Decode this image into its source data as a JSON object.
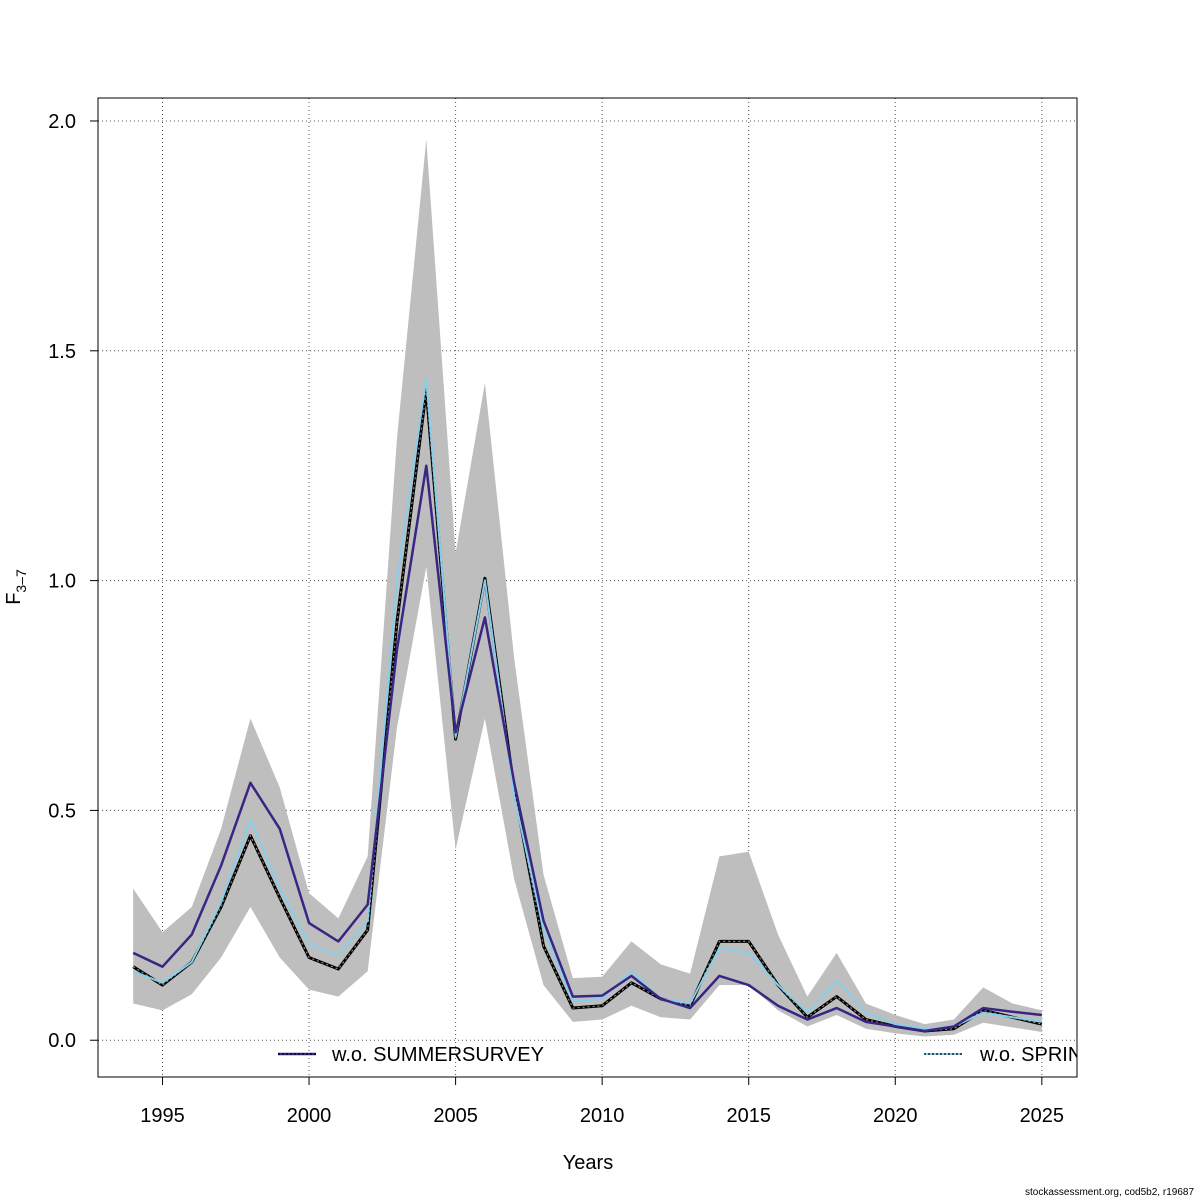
{
  "chart_data": {
    "type": "line",
    "xlabel": "Years",
    "ylabel_main": "F",
    "ylabel_sub": "3–7",
    "xlim": [
      1992.8,
      2026.2
    ],
    "ylim": [
      -0.08,
      2.05
    ],
    "x_ticks": [
      1995,
      2000,
      2005,
      2010,
      2015,
      2020,
      2025
    ],
    "y_ticks": [
      0.0,
      0.5,
      1.0,
      1.5,
      2.0
    ],
    "y_tick_labels": [
      "0.0",
      "0.5",
      "1.0",
      "1.5",
      "2.0"
    ],
    "grid": true,
    "legend_placement": "bottom",
    "x": [
      1994,
      1995,
      1996,
      1997,
      1998,
      1999,
      2000,
      2001,
      2002,
      2003,
      2004,
      2005,
      2006,
      2007,
      2008,
      2009,
      2010,
      2011,
      2012,
      2013,
      2014,
      2015,
      2016,
      2017,
      2018,
      2019,
      2020,
      2021,
      2022,
      2023,
      2024,
      2025
    ],
    "band": {
      "color": "#bebebe",
      "lower": [
        0.08,
        0.065,
        0.1,
        0.18,
        0.29,
        0.18,
        0.11,
        0.095,
        0.15,
        0.68,
        1.03,
        0.415,
        0.7,
        0.35,
        0.12,
        0.04,
        0.045,
        0.075,
        0.05,
        0.045,
        0.12,
        0.12,
        0.065,
        0.03,
        0.055,
        0.025,
        0.015,
        0.008,
        0.012,
        0.038,
        0.028,
        0.018
      ],
      "upper": [
        0.33,
        0.235,
        0.29,
        0.46,
        0.7,
        0.55,
        0.32,
        0.265,
        0.4,
        1.31,
        1.96,
        1.06,
        1.43,
        0.83,
        0.36,
        0.135,
        0.138,
        0.215,
        0.165,
        0.145,
        0.4,
        0.41,
        0.23,
        0.095,
        0.19,
        0.08,
        0.055,
        0.035,
        0.045,
        0.115,
        0.08,
        0.065
      ]
    },
    "series": [
      {
        "name": "",
        "color": "#000000",
        "style": "solid-with-dots",
        "values": [
          0.16,
          0.12,
          0.17,
          0.29,
          0.445,
          0.31,
          0.18,
          0.155,
          0.24,
          0.91,
          1.415,
          0.655,
          1.005,
          0.545,
          0.205,
          0.07,
          0.075,
          0.125,
          0.09,
          0.075,
          0.215,
          0.215,
          0.12,
          0.05,
          0.095,
          0.045,
          0.03,
          0.02,
          0.025,
          0.065,
          0.05,
          0.035
        ]
      },
      {
        "name": "w.o. SUMMERSURVEY",
        "color": "#3b2584",
        "style": "solid",
        "values": [
          0.19,
          0.16,
          0.23,
          0.38,
          0.56,
          0.46,
          0.255,
          0.215,
          0.295,
          0.85,
          1.25,
          0.67,
          0.92,
          0.56,
          0.26,
          0.095,
          0.097,
          0.14,
          0.09,
          0.07,
          0.14,
          0.12,
          0.075,
          0.045,
          0.07,
          0.04,
          0.03,
          0.02,
          0.03,
          0.07,
          0.062,
          0.055
        ]
      },
      {
        "name": "w.o. SPRIN",
        "color": "#87ceeb",
        "style": "solid",
        "values": [
          0.15,
          0.125,
          0.17,
          0.3,
          0.48,
          0.33,
          0.21,
          0.185,
          0.26,
          1.0,
          1.44,
          0.66,
          1.0,
          0.53,
          0.24,
          0.085,
          0.09,
          0.15,
          0.09,
          0.08,
          0.2,
          0.19,
          0.12,
          0.06,
          0.13,
          0.06,
          0.035,
          0.025,
          0.03,
          0.06,
          0.05,
          0.04
        ]
      }
    ]
  },
  "credit": "stockassessment.org, cod5b2, r19687"
}
